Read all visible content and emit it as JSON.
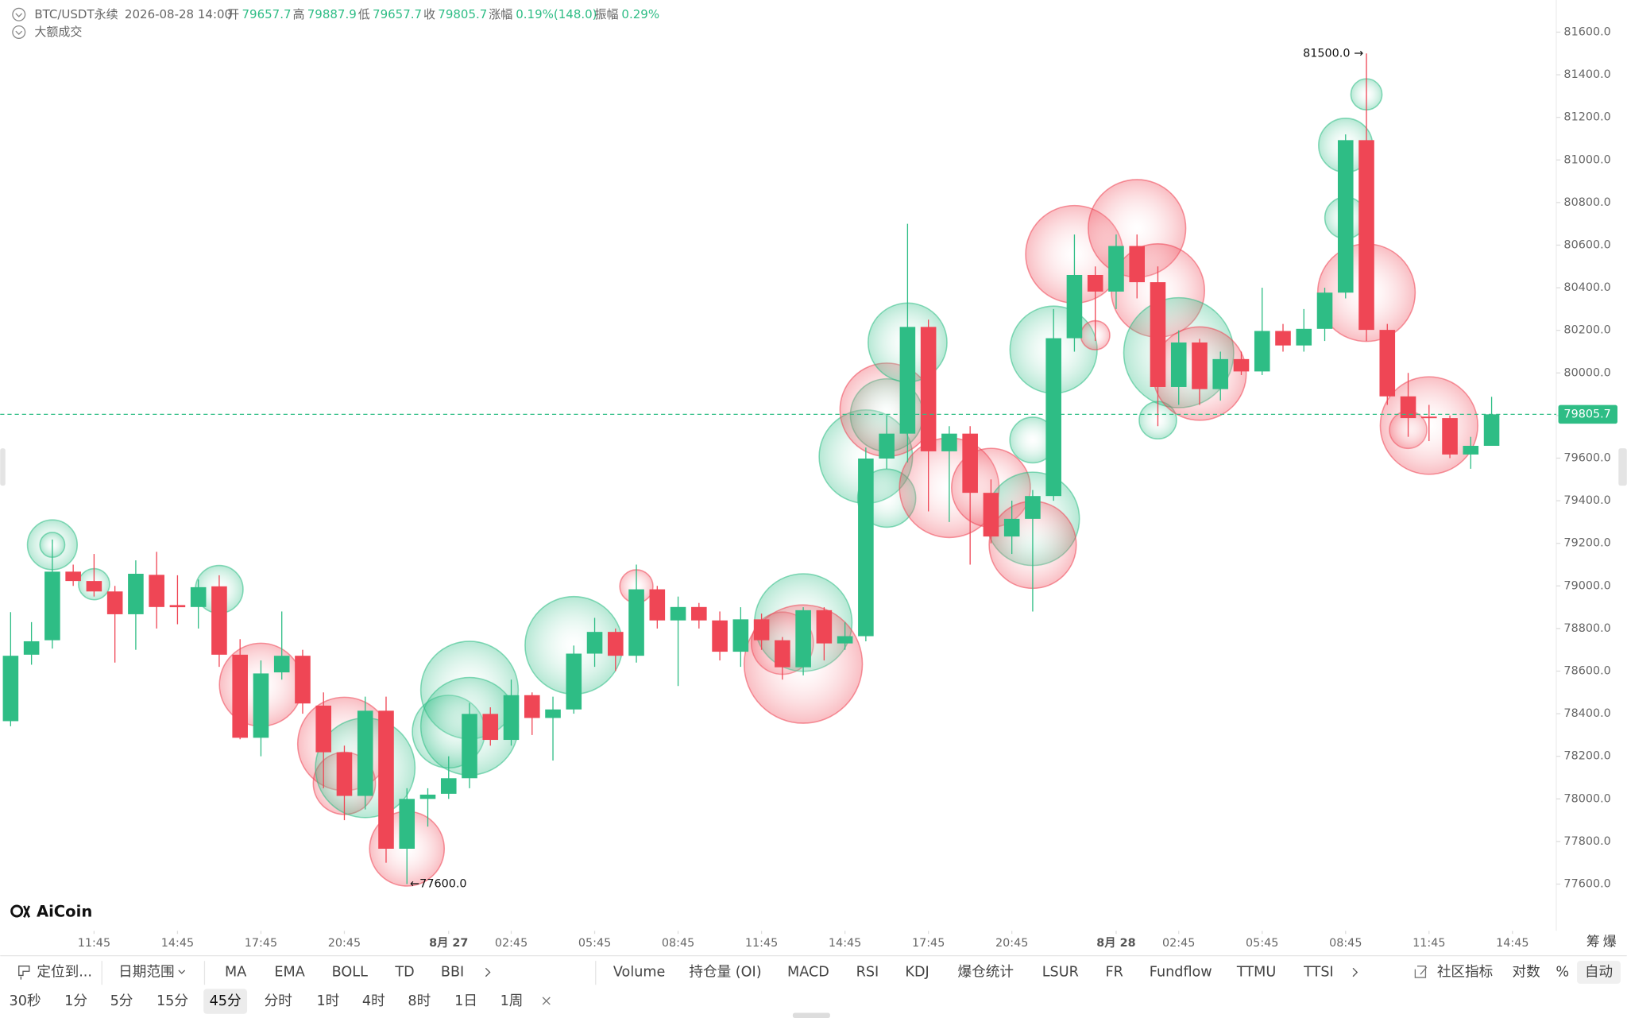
{
  "header": {
    "symbol": "BTC/USDT永续",
    "time": "2026-08-28 14:00",
    "fields": [
      {
        "label": "开",
        "value": "79657.7"
      },
      {
        "label": "高",
        "value": "79887.9"
      },
      {
        "label": "低",
        "value": "79657.7"
      },
      {
        "label": "收",
        "value": "79805.7"
      },
      {
        "label": "涨幅",
        "value": "0.19%(148.0)"
      },
      {
        "label": "振幅",
        "value": "0.29%"
      }
    ],
    "layer": "大额成交"
  },
  "chart_data": {
    "type": "candlestick",
    "up_color": "#2ebd85",
    "down_color": "#ef4655",
    "open": [
      78365,
      78677,
      78745,
      79067,
      79023,
      78974,
      78867,
      79052,
      78910,
      78901,
      78998,
      78677,
      78287,
      78594,
      78672,
      78438,
      78219,
      78014,
      78414,
      77766,
      78000,
      78024,
      78097,
      78399,
      78277,
      78487,
      78380,
      78420,
      78682,
      78784,
      78672,
      78984,
      78838,
      78901,
      78838,
      78691,
      78843,
      78745,
      78618,
      78886,
      78730,
      78764,
      79598,
      79715,
      80216,
      79632,
      79715,
      79437,
      79232,
      79315,
      79422,
      80163,
      80460,
      80382,
      80596,
      80426,
      79934,
      80143,
      79924,
      80065,
      80007,
      80197,
      80129,
      80207,
      80377,
      81093,
      80202,
      79890,
      79795,
      79788,
      79617,
      79657.7
    ],
    "high": [
      78877,
      78830,
      79218,
      79100,
      79150,
      79000,
      79120,
      79160,
      79050,
      79030,
      79050,
      78750,
      78650,
      78880,
      78700,
      78500,
      78250,
      78480,
      78480,
      78050,
      78050,
      78200,
      78450,
      78430,
      78560,
      78500,
      78480,
      78720,
      78850,
      78800,
      79100,
      79000,
      78950,
      78920,
      78880,
      78900,
      78870,
      78760,
      78900,
      78900,
      78830,
      79650,
      79800,
      80700,
      80250,
      79750,
      79750,
      79500,
      79400,
      79450,
      80300,
      80650,
      80500,
      80650,
      80650,
      80500,
      80200,
      80160,
      80100,
      80100,
      80400,
      80230,
      80300,
      80400,
      81120,
      81500,
      80230,
      80000,
      79850,
      79800,
      79700,
      79887.9
    ],
    "low": [
      78341,
      78630,
      78706,
      79000,
      78950,
      78640,
      78700,
      78800,
      78820,
      78800,
      78620,
      78280,
      78200,
      78560,
      78400,
      78050,
      77900,
      77950,
      77700,
      77600,
      77870,
      78000,
      78050,
      78250,
      78250,
      78300,
      78180,
      78400,
      78620,
      78600,
      78640,
      78800,
      78530,
      78800,
      78650,
      78620,
      78700,
      78560,
      78580,
      78650,
      78700,
      78740,
      79550,
      79580,
      79350,
      79300,
      79100,
      79200,
      79150,
      78880,
      79400,
      80100,
      80150,
      80300,
      80350,
      79750,
      79850,
      79850,
      79870,
      79990,
      79990,
      80100,
      80100,
      80150,
      80350,
      80150,
      79850,
      79700,
      79680,
      79600,
      79550,
      79657.7
    ],
    "close": [
      78672,
      78740,
      79067,
      79023,
      78974,
      78867,
      79057,
      78901,
      78900,
      78994,
      78677,
      78287,
      78589,
      78672,
      78448,
      78219,
      78014,
      78414,
      77766,
      78000,
      78020,
      78097,
      78399,
      78277,
      78487,
      78380,
      78420,
      78682,
      78784,
      78672,
      78984,
      78838,
      78901,
      78838,
      78691,
      78843,
      78745,
      78618,
      78886,
      78730,
      78764,
      79598,
      79715,
      80216,
      79632,
      79715,
      79437,
      79232,
      79315,
      79422,
      80163,
      80460,
      80382,
      80596,
      80426,
      79934,
      80143,
      79924,
      80065,
      80007,
      80197,
      80129,
      80207,
      80377,
      81093,
      80202,
      79890,
      79788,
      79790,
      79617,
      79657.7,
      79805.7
    ],
    "xlim": [
      -0.5,
      74.1
    ],
    "xticks": [
      {
        "value": 4,
        "label": "11:45"
      },
      {
        "value": 8,
        "label": "14:45"
      },
      {
        "value": 12,
        "label": "17:45"
      },
      {
        "value": 16,
        "label": "20:45"
      },
      {
        "value": 21,
        "label": "8月 27"
      },
      {
        "value": 24,
        "label": "02:45"
      },
      {
        "value": 28,
        "label": "05:45"
      },
      {
        "value": 32,
        "label": "08:45"
      },
      {
        "value": 36,
        "label": "11:45"
      },
      {
        "value": 40,
        "label": "14:45"
      },
      {
        "value": 44,
        "label": "17:45"
      },
      {
        "value": 48,
        "label": "20:45"
      },
      {
        "value": 53,
        "label": "8月 28"
      },
      {
        "value": 56,
        "label": "02:45"
      },
      {
        "value": 60,
        "label": "05:45"
      },
      {
        "value": 64,
        "label": "08:45"
      },
      {
        "value": 68,
        "label": "11:45"
      },
      {
        "value": 72,
        "label": "14:45"
      }
    ],
    "ylim": [
      77400,
      81751
    ],
    "yticks": [
      {
        "value": 77600,
        "label": "77600.0"
      },
      {
        "value": 77800,
        "label": "77800.0"
      },
      {
        "value": 78000,
        "label": "78000.0"
      },
      {
        "value": 78200,
        "label": "78200.0"
      },
      {
        "value": 78400,
        "label": "78400.0"
      },
      {
        "value": 78600,
        "label": "78600.0"
      },
      {
        "value": 78800,
        "label": "78800.0"
      },
      {
        "value": 79000,
        "label": "79000.0"
      },
      {
        "value": 79200,
        "label": "79200.0"
      },
      {
        "value": 79400,
        "label": "79400.0"
      },
      {
        "value": 79600,
        "label": "79600.0"
      },
      {
        "value": 79800,
        "label": "79800.0"
      },
      {
        "value": 80000,
        "label": "80000.0"
      },
      {
        "value": 80200,
        "label": "80200.0"
      },
      {
        "value": 80400,
        "label": "80400.0"
      },
      {
        "value": 80600,
        "label": "80600.0"
      },
      {
        "value": 80800,
        "label": "80800.0"
      },
      {
        "value": 81000,
        "label": "81000.0"
      },
      {
        "value": 81200,
        "label": "81200.0"
      },
      {
        "value": 81400,
        "label": "81400.0"
      },
      {
        "value": 81600,
        "label": "81600.0"
      }
    ],
    "last_price": 79805.7,
    "annotations": [
      {
        "label": "81500.0 →",
        "index": 65,
        "price": 81500,
        "side": "left"
      },
      {
        "label": "←77600.0",
        "index": 19,
        "price": 77600,
        "side": "right"
      }
    ],
    "large_trades": [
      {
        "index": 2,
        "price": 79193,
        "size": 24,
        "side": "buy"
      },
      {
        "index": 2,
        "price": 79193,
        "size": 12,
        "side": "buy"
      },
      {
        "index": 4,
        "price": 79008,
        "size": 15,
        "side": "buy"
      },
      {
        "index": 10,
        "price": 78984,
        "size": 23,
        "side": "buy"
      },
      {
        "index": 12,
        "price": 78536,
        "size": 40,
        "side": "sell"
      },
      {
        "index": 16,
        "price": 78258,
        "size": 45,
        "side": "sell"
      },
      {
        "index": 16,
        "price": 78073,
        "size": 30,
        "side": "sell"
      },
      {
        "index": 17,
        "price": 78146,
        "size": 48,
        "side": "buy"
      },
      {
        "index": 19,
        "price": 77766,
        "size": 36,
        "side": "sell"
      },
      {
        "index": 21,
        "price": 78316,
        "size": 35,
        "side": "buy"
      },
      {
        "index": 22,
        "price": 78511,
        "size": 47,
        "side": "buy"
      },
      {
        "index": 22,
        "price": 78341,
        "size": 47,
        "side": "buy"
      },
      {
        "index": 27,
        "price": 78721,
        "size": 47,
        "side": "buy"
      },
      {
        "index": 30,
        "price": 78998,
        "size": 16,
        "side": "sell"
      },
      {
        "index": 37,
        "price": 78731,
        "size": 30,
        "side": "sell"
      },
      {
        "index": 38,
        "price": 78828,
        "size": 47,
        "side": "buy"
      },
      {
        "index": 38,
        "price": 78633,
        "size": 57,
        "side": "sell"
      },
      {
        "index": 41,
        "price": 79607,
        "size": 45,
        "side": "buy"
      },
      {
        "index": 42,
        "price": 79802,
        "size": 35,
        "side": "buy"
      },
      {
        "index": 42,
        "price": 79412,
        "size": 28,
        "side": "buy"
      },
      {
        "index": 42,
        "price": 79827,
        "size": 45,
        "side": "sell"
      },
      {
        "index": 43,
        "price": 80143,
        "size": 38,
        "side": "buy"
      },
      {
        "index": 45,
        "price": 79461,
        "size": 48,
        "side": "sell"
      },
      {
        "index": 47,
        "price": 79461,
        "size": 38,
        "side": "sell"
      },
      {
        "index": 49,
        "price": 79685,
        "size": 22,
        "side": "buy"
      },
      {
        "index": 49,
        "price": 79315,
        "size": 45,
        "side": "buy"
      },
      {
        "index": 49,
        "price": 79193,
        "size": 42,
        "side": "sell"
      },
      {
        "index": 50,
        "price": 80109,
        "size": 42,
        "side": "buy"
      },
      {
        "index": 51,
        "price": 80557,
        "size": 47,
        "side": "sell"
      },
      {
        "index": 52,
        "price": 80177,
        "size": 14,
        "side": "sell"
      },
      {
        "index": 54,
        "price": 80679,
        "size": 47,
        "side": "sell"
      },
      {
        "index": 55,
        "price": 80387,
        "size": 45,
        "side": "sell"
      },
      {
        "index": 55,
        "price": 79778,
        "size": 18,
        "side": "buy"
      },
      {
        "index": 56,
        "price": 80095,
        "size": 53,
        "side": "buy"
      },
      {
        "index": 57,
        "price": 79997,
        "size": 45,
        "side": "sell"
      },
      {
        "index": 64,
        "price": 81069,
        "size": 26,
        "side": "buy"
      },
      {
        "index": 64,
        "price": 80728,
        "size": 20,
        "side": "buy"
      },
      {
        "index": 65,
        "price": 81308,
        "size": 15,
        "side": "buy"
      },
      {
        "index": 65,
        "price": 80377,
        "size": 47,
        "side": "sell"
      },
      {
        "index": 67,
        "price": 79733,
        "size": 18,
        "side": "sell"
      },
      {
        "index": 68,
        "price": 79753,
        "size": 47,
        "side": "sell"
      }
    ]
  },
  "logo": "AiCoin",
  "side_labels": [
    "筹",
    "爆"
  ],
  "toolbar": {
    "tools": [
      "定位到...",
      "日期范围"
    ],
    "main_indicators": [
      "MA",
      "EMA",
      "BOLL",
      "TD",
      "BBI"
    ],
    "sub_indicators": [
      "Volume",
      "持仓量 (OI)",
      "MACD",
      "RSI",
      "KDJ",
      "爆仓统计",
      "LSUR",
      "FR",
      "Fundflow",
      "TTMU",
      "TTSI"
    ],
    "right": [
      "社区指标",
      "对数",
      "%",
      "自动"
    ],
    "intervals": [
      "30秒",
      "1分",
      "5分",
      "15分",
      "45分",
      "分时",
      "1时",
      "4时",
      "8时",
      "1日",
      "1周"
    ],
    "active_interval": 4
  }
}
